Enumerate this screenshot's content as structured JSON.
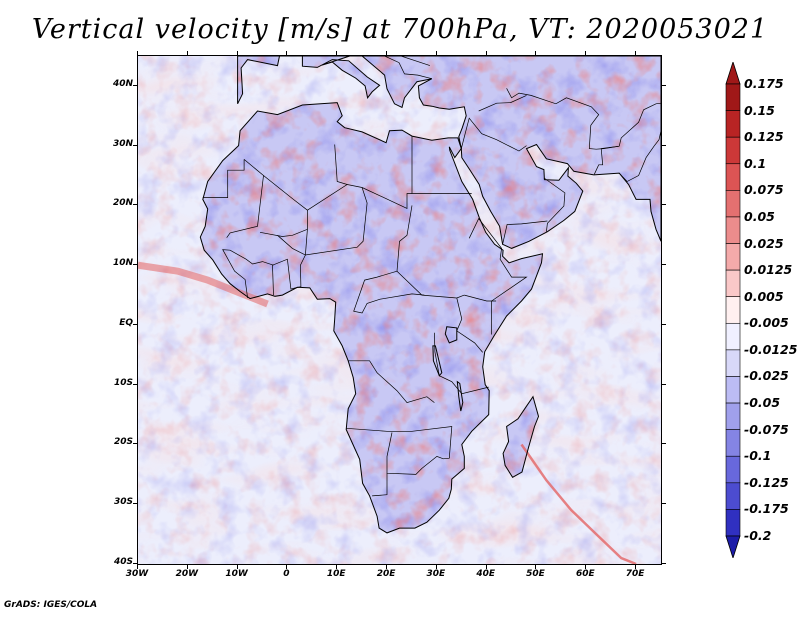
{
  "title": "Vertical velocity [m/s] at 700hPa, VT: 2020053021",
  "credit": "GrADS: IGES/COLA",
  "map": {
    "lon_range": [
      -30,
      75
    ],
    "lat_range": [
      -40,
      45
    ],
    "lat_labels": [
      "40N",
      "30N",
      "20N",
      "10N",
      "EQ",
      "10S",
      "20S",
      "30S",
      "40S"
    ],
    "lon_labels": [
      "30W",
      "20W",
      "10W",
      "0",
      "10E",
      "20E",
      "30E",
      "40E",
      "50E",
      "60E",
      "70E"
    ]
  },
  "colorbar": {
    "labels": [
      "0.175",
      "0.15",
      "0.125",
      "0.1",
      "0.075",
      "0.05",
      "0.025",
      "0.0125",
      "0.005",
      "-0.005",
      "-0.0125",
      "-0.025",
      "-0.05",
      "-0.075",
      "-0.1",
      "-0.125",
      "-0.175",
      "-0.2"
    ],
    "colors": [
      "#a01818",
      "#b82424",
      "#cc3838",
      "#dc5454",
      "#e47070",
      "#ec8c8c",
      "#f4aaaa",
      "#fac8c8",
      "#fff0f0",
      "#f0f0ff",
      "#d8d8f8",
      "#bcbcf4",
      "#a0a0ec",
      "#8484e4",
      "#6868dc",
      "#4c4cd0",
      "#3030c0",
      "#1c1ca8"
    ],
    "top_color": "#a01818",
    "bottom_color": "#1c1ca8"
  },
  "colors": {
    "ocean": "#eceefc",
    "land": "#c8c8f4",
    "up": "#e46464",
    "down": "#6262dc"
  }
}
